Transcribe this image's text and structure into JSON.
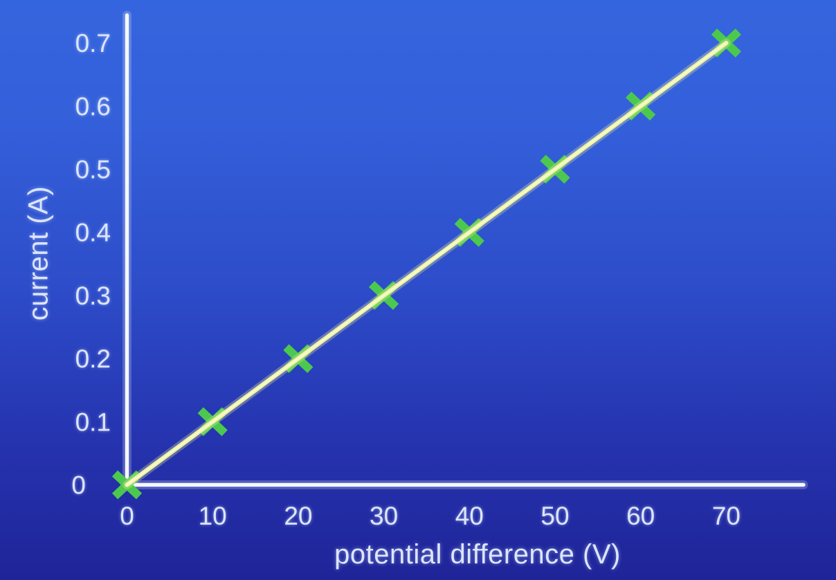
{
  "chart_data": {
    "type": "scatter",
    "title": "",
    "xlabel": "potential difference (V)",
    "ylabel": "current (A)",
    "xlim": [
      0,
      79
    ],
    "ylim": [
      0,
      0.745
    ],
    "grid": false,
    "legend": null,
    "marker_style": "x",
    "x_ticks": [
      {
        "value": 0,
        "label": "0"
      },
      {
        "value": 10,
        "label": "10"
      },
      {
        "value": 20,
        "label": "20"
      },
      {
        "value": 30,
        "label": "30"
      },
      {
        "value": 40,
        "label": "40"
      },
      {
        "value": 50,
        "label": "50"
      },
      {
        "value": 60,
        "label": "60"
      },
      {
        "value": 70,
        "label": "70"
      }
    ],
    "y_ticks": [
      {
        "value": 0,
        "label": "0"
      },
      {
        "value": 0.1,
        "label": "0.1"
      },
      {
        "value": 0.2,
        "label": "0.2"
      },
      {
        "value": 0.3,
        "label": "0.3"
      },
      {
        "value": 0.4,
        "label": "0.4"
      },
      {
        "value": 0.5,
        "label": "0.5"
      },
      {
        "value": 0.6,
        "label": "0.6"
      },
      {
        "value": 0.7,
        "label": "0.7"
      }
    ],
    "points": [
      {
        "x": 0,
        "y": 0
      },
      {
        "x": 10,
        "y": 0.1
      },
      {
        "x": 20,
        "y": 0.2
      },
      {
        "x": 30,
        "y": 0.3
      },
      {
        "x": 40,
        "y": 0.4
      },
      {
        "x": 50,
        "y": 0.5
      },
      {
        "x": 60,
        "y": 0.6
      },
      {
        "x": 70,
        "y": 0.7
      }
    ],
    "fit_line": {
      "from": {
        "x": 0,
        "y": 0
      },
      "to": {
        "x": 70,
        "y": 0.7
      }
    },
    "colors": {
      "background_top": "#3565DE",
      "background_upper_mid": "#345FDA",
      "background_mid": "#2D4CC9",
      "background_lower_mid": "#2634B0",
      "background_bottom": "#1F2498",
      "axis": "#F4F7FF",
      "tick_label": "#DCE5FA",
      "axis_label": "#DCE5FA",
      "line": "#EDF2A0",
      "line_highlight": "#F7F9CF",
      "marker": "#4DC84E"
    }
  }
}
